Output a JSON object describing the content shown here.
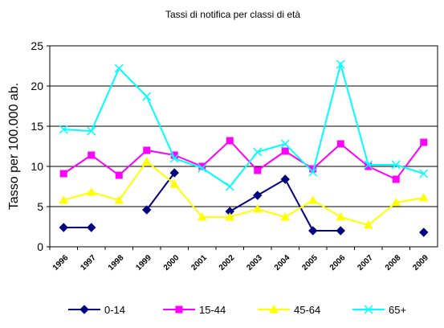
{
  "chart_data": {
    "type": "line",
    "title": "Tassi di notifica per classi di età",
    "y_label": "Tasso per 100.000 ab.",
    "categories": [
      "1996",
      "1997",
      "1998",
      "1999",
      "2000",
      "2001",
      "2002",
      "2003",
      "2004",
      "2005",
      "2006",
      "2007",
      "2008",
      "2009"
    ],
    "series": [
      {
        "name": "0-14",
        "color": "#000080",
        "marker": "diamond",
        "values": [
          2.4,
          2.4,
          null,
          4.6,
          9.2,
          null,
          4.4,
          6.4,
          8.4,
          2.0,
          2.0,
          null,
          null,
          1.8
        ]
      },
      {
        "name": "15-44",
        "color": "#ff00ff",
        "marker": "square",
        "values": [
          9.1,
          11.4,
          8.9,
          12.0,
          11.4,
          10.0,
          13.2,
          9.5,
          11.9,
          9.7,
          12.8,
          10.0,
          8.4,
          13.0
        ]
      },
      {
        "name": "45-64",
        "color": "#ffff00",
        "marker": "triangle",
        "values": [
          5.8,
          6.8,
          5.8,
          10.6,
          7.8,
          3.7,
          3.7,
          4.7,
          3.7,
          5.8,
          3.7,
          2.7,
          5.5,
          6.1
        ]
      },
      {
        "name": "65+",
        "color": "#00ffff",
        "marker": "x",
        "values": [
          14.6,
          14.4,
          22.2,
          18.7,
          11.0,
          9.8,
          7.5,
          11.8,
          12.8,
          9.3,
          22.7,
          10.2,
          10.2,
          9.1
        ]
      }
    ],
    "ylim": [
      0,
      25
    ],
    "yticks": [
      0,
      5,
      10,
      15,
      20,
      25
    ],
    "grid": true,
    "legend": "bottom"
  }
}
